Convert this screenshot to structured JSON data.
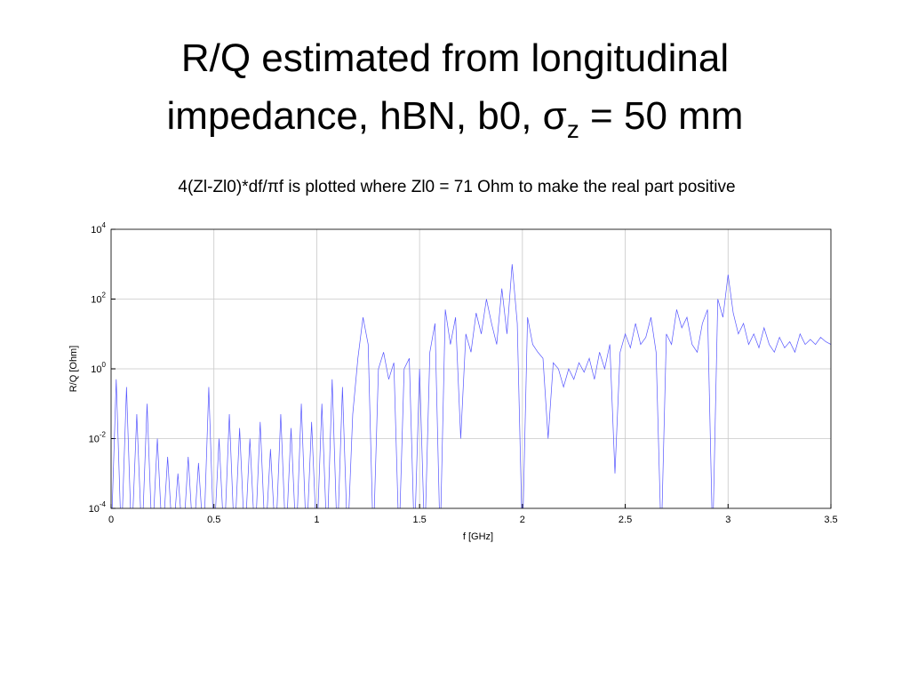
{
  "title_lines": [
    "R/Q estimated from longitudinal",
    "impedance, hBN, b0, σ"
  ],
  "title_subscript": "z",
  "title_end": " = 50 mm",
  "subtitle": "4(Zl-Zl0)*df/πf is plotted where Zl0 = 71 Ohm to make the real part positive",
  "chart_data": {
    "type": "line",
    "xlabel": "f [GHz]",
    "ylabel": "R/Q [Ohm]",
    "yscale": "log",
    "grid": true,
    "xlim": [
      0,
      3.5
    ],
    "ylim": [
      0.0001,
      10000
    ],
    "xticks": [
      0,
      0.5,
      1,
      1.5,
      2,
      2.5,
      3,
      3.5
    ],
    "yticks": [
      {
        "value": 0.0001,
        "label": "10",
        "exponent": "-4"
      },
      {
        "value": 0.01,
        "label": "10",
        "exponent": "-2"
      },
      {
        "value": 1,
        "label": "10",
        "exponent": "0"
      },
      {
        "value": 100,
        "label": "10",
        "exponent": "2"
      },
      {
        "value": 10000,
        "label": "10",
        "exponent": "4"
      }
    ],
    "x": [
      0,
      0.025,
      0.05,
      0.075,
      0.1,
      0.125,
      0.15,
      0.175,
      0.2,
      0.225,
      0.25,
      0.275,
      0.3,
      0.325,
      0.35,
      0.375,
      0.4,
      0.425,
      0.45,
      0.475,
      0.5,
      0.525,
      0.55,
      0.575,
      0.6,
      0.625,
      0.65,
      0.675,
      0.7,
      0.725,
      0.75,
      0.775,
      0.8,
      0.825,
      0.85,
      0.875,
      0.9,
      0.925,
      0.95,
      0.975,
      1,
      1.025,
      1.05,
      1.075,
      1.1,
      1.125,
      1.15,
      1.175,
      1.2,
      1.225,
      1.25,
      1.275,
      1.3,
      1.325,
      1.35,
      1.375,
      1.4,
      1.425,
      1.45,
      1.475,
      1.5,
      1.525,
      1.55,
      1.575,
      1.6,
      1.625,
      1.65,
      1.675,
      1.7,
      1.725,
      1.75,
      1.775,
      1.8,
      1.825,
      1.85,
      1.875,
      1.9,
      1.925,
      1.95,
      1.975,
      2,
      2.025,
      2.05,
      2.075,
      2.1,
      2.125,
      2.15,
      2.175,
      2.2,
      2.225,
      2.25,
      2.275,
      2.3,
      2.325,
      2.35,
      2.375,
      2.4,
      2.425,
      2.45,
      2.475,
      2.5,
      2.525,
      2.55,
      2.575,
      2.6,
      2.625,
      2.65,
      2.675,
      2.7,
      2.725,
      2.75,
      2.775,
      2.8,
      2.825,
      2.85,
      2.875,
      2.9,
      2.925,
      2.95,
      2.975,
      3,
      3.025,
      3.05,
      3.075,
      3.1,
      3.125,
      3.15,
      3.175,
      3.2,
      3.225,
      3.25,
      3.275,
      3.3,
      3.325,
      3.35,
      3.375,
      3.4,
      3.425,
      3.45,
      3.475,
      3.5
    ],
    "series": [
      {
        "color": "#5555ff",
        "values": [
          1e-05,
          0.5,
          1e-05,
          0.3,
          1e-05,
          0.05,
          1e-05,
          0.1,
          1e-05,
          0.01,
          1e-05,
          0.003,
          1e-05,
          0.001,
          1e-05,
          0.003,
          1e-05,
          0.002,
          1e-05,
          0.3,
          1e-05,
          0.01,
          1e-05,
          0.05,
          1e-05,
          0.02,
          1e-05,
          0.01,
          1e-05,
          0.03,
          1e-05,
          0.005,
          1e-05,
          0.05,
          1e-05,
          0.02,
          1e-05,
          0.1,
          1e-05,
          0.03,
          1e-05,
          0.1,
          1e-05,
          0.5,
          1e-05,
          0.3,
          1e-05,
          0.05,
          2,
          30,
          5,
          1e-05,
          1,
          3,
          0.5,
          1.5,
          1e-05,
          1,
          2,
          1e-05,
          1,
          1e-05,
          3,
          20,
          1e-05,
          50,
          5,
          30,
          0.01,
          10,
          3,
          40,
          10,
          100,
          20,
          5,
          200,
          10,
          1000,
          20,
          1e-05,
          30,
          5,
          3,
          2,
          0.01,
          1.5,
          1,
          0.3,
          1,
          0.5,
          1.5,
          0.8,
          2,
          0.5,
          3,
          1,
          5,
          0.001,
          3,
          10,
          4,
          20,
          5,
          8,
          30,
          3,
          1e-05,
          10,
          5,
          50,
          15,
          30,
          5,
          3,
          20,
          50,
          1e-05,
          100,
          30,
          500,
          40,
          10,
          20,
          5,
          10,
          4,
          15,
          5,
          3,
          8,
          4,
          6,
          3,
          10,
          5,
          7,
          5,
          8,
          6,
          5
        ]
      }
    ]
  }
}
